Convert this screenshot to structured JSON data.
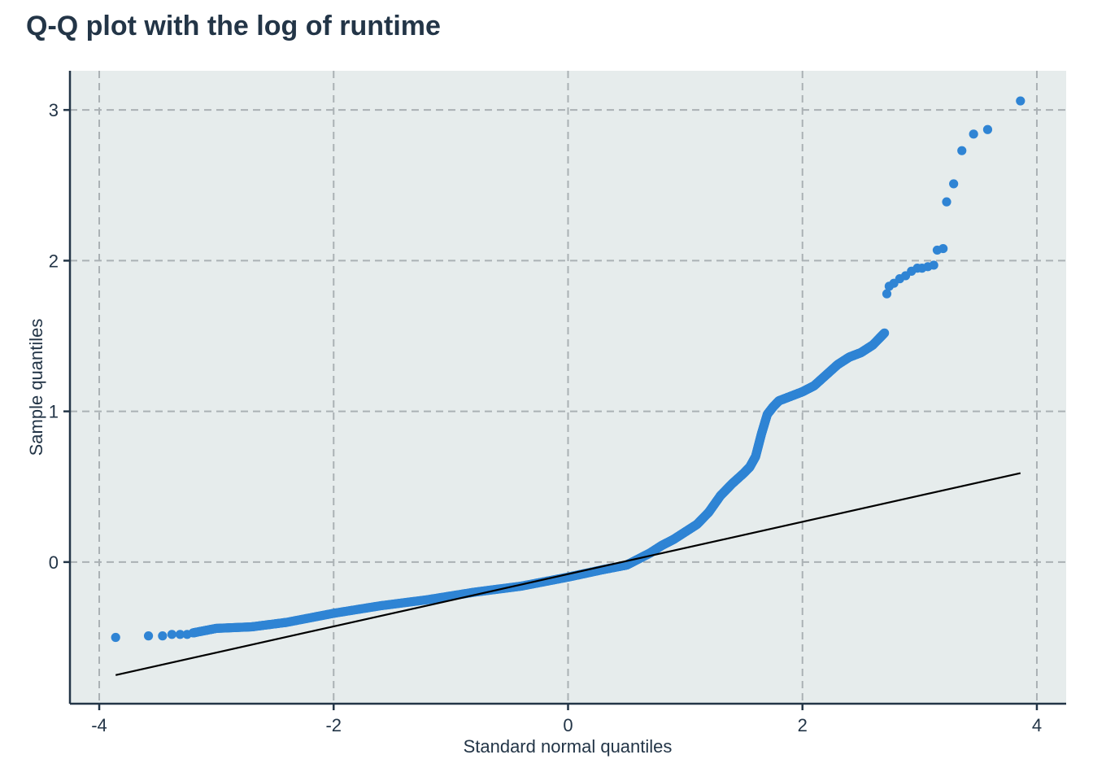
{
  "chart_data": {
    "type": "scatter",
    "title": "Q-Q plot with the log of runtime",
    "xlabel": "Standard normal quantiles",
    "ylabel": "Sample quantiles",
    "xlim": [
      -4.25,
      4.25
    ],
    "ylim": [
      -0.94,
      3.26
    ],
    "x_ticks": [
      -4,
      -2,
      0,
      2,
      4
    ],
    "x_tick_labels": [
      "-4",
      "-2",
      "0",
      "2",
      "4"
    ],
    "y_ticks": [
      0,
      1,
      2,
      3
    ],
    "y_tick_labels": [
      "0",
      "1",
      "2",
      "3"
    ],
    "grid": true,
    "colors": {
      "points": "#2f84d4",
      "line": "#000000",
      "panel": "#e6ecec",
      "grid": "#aab1b4",
      "axis": "#233547"
    },
    "reference_line": {
      "x": [
        -3.86,
        3.86
      ],
      "y": [
        -0.75,
        0.59
      ]
    },
    "sample_curve": {
      "x": [
        -3.2,
        -3.0,
        -2.7,
        -2.4,
        -2.0,
        -1.6,
        -1.2,
        -0.8,
        -0.4,
        0.0,
        0.3,
        0.5,
        0.6,
        0.7,
        0.8,
        0.9,
        1.0,
        1.1,
        1.2,
        1.3,
        1.4,
        1.5,
        1.55,
        1.6,
        1.65,
        1.7,
        1.75,
        1.8,
        1.9,
        2.0,
        2.1,
        2.2,
        2.3,
        2.4,
        2.5,
        2.6,
        2.7
      ],
      "y": [
        -0.47,
        -0.44,
        -0.43,
        -0.4,
        -0.34,
        -0.29,
        -0.25,
        -0.2,
        -0.16,
        -0.1,
        -0.05,
        -0.02,
        0.02,
        0.06,
        0.11,
        0.15,
        0.2,
        0.25,
        0.33,
        0.44,
        0.52,
        0.59,
        0.63,
        0.7,
        0.85,
        0.98,
        1.03,
        1.07,
        1.1,
        1.13,
        1.17,
        1.24,
        1.31,
        1.36,
        1.39,
        1.44,
        1.52
      ]
    },
    "tail_points": {
      "x": [
        -3.86,
        -3.58,
        -3.46,
        -3.38,
        -3.31,
        -3.25,
        -3.19,
        2.72,
        2.74,
        2.78,
        2.83,
        2.88,
        2.93,
        2.98,
        3.02,
        3.07,
        3.12,
        3.15,
        3.2,
        3.23,
        3.29,
        3.36,
        3.46,
        3.58,
        3.86
      ],
      "y": [
        -0.5,
        -0.49,
        -0.49,
        -0.48,
        -0.48,
        -0.48,
        -0.47,
        1.78,
        1.83,
        1.85,
        1.88,
        1.9,
        1.93,
        1.95,
        1.95,
        1.96,
        1.97,
        2.07,
        2.08,
        2.39,
        2.51,
        2.73,
        2.84,
        2.87,
        3.06
      ]
    }
  }
}
